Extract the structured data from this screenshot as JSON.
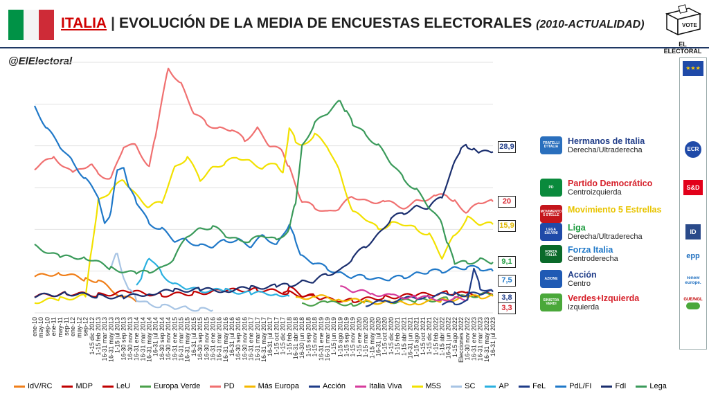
{
  "header": {
    "country": "ITALIA",
    "separator": "|",
    "title_main": "EVOLUCIÓN DE LA MEDIA DE ENCUESTAS ELECTORALES",
    "title_period": "(2010-ACTUALIDAD)",
    "handle": "@ElElectoral",
    "logo_vote": "VOTE",
    "logo_text": "EL ELECTORAL"
  },
  "colors": {
    "flag_green": "#009246",
    "flag_white": "#ffffff",
    "flag_red": "#ce2b37",
    "country_red": "#d00000",
    "title_dark": "#1f1f1f"
  },
  "sidebar": {
    "items": [
      {
        "icon": "eu-flag-icon",
        "label": ""
      },
      {
        "icon": "ecr-logo-icon",
        "label": "ECR"
      },
      {
        "icon": "sd-logo-icon",
        "label": "S&D"
      },
      {
        "icon": "id-logo-icon",
        "label": "ID"
      },
      {
        "icon": "epp-logo-icon",
        "label": "epp"
      },
      {
        "icon": "renew-logo-icon",
        "label": "renew europe."
      },
      {
        "icon": "greens-logo-icon",
        "label": "GUE/NGL"
      }
    ]
  },
  "party_labels": [
    {
      "name": "Hermanos de Italia",
      "ideology": "Derecha/Ultraderecha",
      "color": "#1f3c88",
      "logo_color": "#2a6fbd",
      "logo_text": "FRATELLI D'ITALIA"
    },
    {
      "name": "Partido Democrático",
      "ideology": "Centroizquierda",
      "color": "#d6202a",
      "logo_color": "#0a8a3c",
      "logo_text": "PD"
    },
    {
      "name": "Movimiento 5 Estrellas",
      "ideology": "",
      "color": "#e8c400",
      "logo_color": "#c4161c",
      "logo_text": "MOVIMENTO 5 STELLE"
    },
    {
      "name": "Liga",
      "ideology": "Derecha/Ultraderecha",
      "color": "#1a9a3c",
      "logo_color": "#1f4aa8",
      "logo_text": "LEGA SALVINI"
    },
    {
      "name": "Forza Italia",
      "ideology": "Centroderecha",
      "color": "#1f78c8",
      "logo_color": "#0a6a2a",
      "logo_text": "FORZA ITALIA"
    },
    {
      "name": "Acción",
      "ideology": "Centro",
      "color": "#1f3c88",
      "logo_color": "#1f5ab4",
      "logo_text": "AZIONE"
    },
    {
      "name": "Verdes+Izquierda",
      "ideology": "Izquierda",
      "color": "#d6202a",
      "logo_color": "#4aa83a",
      "logo_text": "SINISTRA VERDI"
    }
  ],
  "chart_data": {
    "type": "line",
    "title": "",
    "xlabel": "",
    "ylabel": "",
    "ylim": [
      0,
      45
    ],
    "x_tick_labels": [
      "ene-10",
      "may-10",
      "sep-10",
      "ene-11",
      "may-11",
      "sep-11",
      "ene-12",
      "may-12",
      "sep-12",
      "1-15 dic 2012",
      "1-15 feb 2013",
      "16-31 mar 2013",
      "16-31 may 2013",
      "1-15 jul 2013",
      "16-30 sep 2013",
      "16-30 nov 2013",
      "16-31 ene 2014",
      "16-31 mar 2014",
      "16-31 may 2014",
      "16-31 jul 2014",
      "16-30 sep 2014",
      "16-30 nov 2014",
      "16-31 ene 2015",
      "16-31 mar 2015",
      "16-31 may 2015",
      "16-31 jul 2015",
      "16-30 sep 2015",
      "16-30 nov 2015",
      "16-31 ene 2016",
      "16-31 mar 2016",
      "16-31 may 2016",
      "16-31 jul 2016",
      "16-30 sep 2016",
      "16-30 nov 2016",
      "16-31 ene 2017",
      "16-31 mar 2017",
      "16-31 may 2017",
      "16-31 jul 2017",
      "1-15 oct 2017",
      "1-15 dic 2017",
      "1-15 feb 2018",
      "16-31 abr 2018",
      "16-30 jun 2018",
      "1-15 sep 2018",
      "1-15 nov 2018",
      "16-31 ene 2019",
      "16-31 mar 2019",
      "1-15 jun 2019",
      "1-15 ago 2019",
      "1-15 sep 2019",
      "1-15 nov 2019",
      "1-15 ene 2020",
      "1-15 mar 2020",
      "1-15 may 2020",
      "16-31 jul 2020",
      "1-15 oct 2020",
      "1-15 dic 2020",
      "1-15 feb 2021",
      "1-15 abr 2021",
      "16-31 jun 2021",
      "1-15 ago 2021",
      "1-15 oct 2021",
      "1-15 dic 2021",
      "1-15 feb 2022",
      "1-15 abr 2022",
      "16-31 jun 2022",
      "1-15 ago 2022",
      "Elecciones 2022",
      "16-30 nov 2022",
      "16-31 ene 2023",
      "16-31 mar 2023",
      "16-31 may 2023",
      "16-31 jul 2023"
    ],
    "end_labels": [
      {
        "series": "FdI",
        "text": "28,9",
        "value": 28.9
      },
      {
        "series": "PD",
        "text": "20",
        "value": 20.0
      },
      {
        "series": "M5S",
        "text": "15,9",
        "value": 15.9
      },
      {
        "series": "Lega",
        "text": "9,1",
        "value": 9.1
      },
      {
        "series": "PdL/FI",
        "text": "7,5",
        "value": 7.5
      },
      {
        "series": "Acción",
        "text": "3,8",
        "value": 3.8
      },
      {
        "series": "Verdes+Izquierda",
        "text": "3,3",
        "value": 3.3
      }
    ],
    "series": [
      {
        "name": "IdV/RC",
        "color": "#f07f1a",
        "x": [
          0,
          4,
          8,
          10,
          13,
          16
        ],
        "y": [
          6.5,
          7.2,
          6.0,
          5.8,
          3.5,
          2.0
        ]
      },
      {
        "name": "MDP",
        "color": "#c00000",
        "x": [
          39,
          40,
          42,
          44
        ],
        "y": [
          3.5,
          4.5,
          3.2,
          3.0
        ]
      },
      {
        "name": "LeU",
        "color": "#c00000",
        "x": [
          0,
          5,
          10,
          15,
          20,
          25,
          30,
          35,
          40,
          45,
          50,
          55,
          60,
          65,
          68,
          70,
          72
        ],
        "y": [
          3.0,
          3.5,
          3.2,
          3.8,
          3.2,
          3.5,
          4.0,
          4.2,
          3.6,
          2.5,
          2.2,
          2.8,
          3.2,
          3.6,
          3.4,
          3.3,
          3.3
        ]
      },
      {
        "name": "Europa Verde",
        "color": "#4aa04a",
        "x": [
          42,
          46,
          50,
          55,
          60,
          65,
          68,
          70,
          72
        ],
        "y": [
          1.5,
          1.8,
          1.6,
          2.0,
          2.2,
          2.5,
          3.0,
          3.2,
          3.3
        ]
      },
      {
        "name": "PD",
        "color": "#f07070",
        "x": [
          0,
          3,
          6,
          9,
          10,
          12,
          14,
          16,
          18,
          19,
          21,
          23,
          25,
          27,
          29,
          31,
          33,
          35,
          37,
          39,
          40,
          42,
          44,
          46,
          48,
          50,
          52,
          55,
          58,
          60,
          63,
          65,
          66,
          68,
          70,
          72
        ],
        "y": [
          26,
          28,
          25,
          27,
          25,
          24,
          30,
          30,
          26,
          32,
          44,
          41,
          36,
          34,
          33,
          33,
          31,
          33,
          30,
          29,
          26,
          20,
          19,
          18,
          19,
          21,
          20,
          20,
          19,
          20,
          21,
          21,
          20,
          18,
          20,
          20
        ]
      },
      {
        "name": "Más Europa",
        "color": "#f5b800",
        "x": [
          41,
          44,
          48,
          52,
          56,
          60,
          64,
          68,
          70,
          72
        ],
        "y": [
          2.5,
          3.0,
          2.5,
          2.0,
          1.8,
          1.8,
          2.2,
          2.8,
          2.9,
          3.0
        ]
      },
      {
        "name": "Acción",
        "color": "#1f3c88",
        "x": [
          52,
          55,
          58,
          62,
          66,
          68,
          70,
          72
        ],
        "y": [
          1.5,
          2.0,
          2.5,
          3.0,
          3.5,
          3.2,
          3.6,
          3.8
        ]
      },
      {
        "name": "Italia Viva",
        "color": "#d63c9c",
        "x": [
          48,
          50,
          53,
          56,
          60,
          64,
          66,
          68
        ],
        "y": [
          4.5,
          4.0,
          3.5,
          3.0,
          2.8,
          2.5,
          2.5,
          2.5
        ]
      },
      {
        "name": "M5S",
        "color": "#f2e100",
        "x": [
          0,
          4,
          8,
          9,
          10,
          12,
          14,
          16,
          18,
          20,
          22,
          24,
          26,
          28,
          30,
          32,
          34,
          36,
          38,
          39,
          40,
          41,
          42,
          44,
          46,
          48,
          50,
          52,
          54,
          56,
          58,
          60,
          62,
          64,
          66,
          68,
          70,
          72
        ],
        "y": [
          2.0,
          2.5,
          3.0,
          12,
          20,
          22,
          24,
          21,
          19,
          20,
          26,
          28,
          24,
          26,
          27,
          28,
          27,
          26,
          27,
          25,
          33,
          31,
          30,
          32,
          30,
          25,
          18,
          17,
          15,
          16,
          16,
          15,
          14,
          10,
          14,
          17,
          16,
          15.9
        ]
      },
      {
        "name": "SC",
        "color": "#a7c4e4",
        "x": [
          12,
          13,
          14,
          15,
          16,
          18,
          20,
          22,
          24,
          26,
          28
        ],
        "y": [
          8,
          11,
          6,
          4,
          2.5,
          1.5,
          1.2,
          1.0,
          0.8,
          0.6,
          0.5
        ]
      },
      {
        "name": "AP",
        "color": "#2ab0e0",
        "x": [
          16,
          17,
          18,
          20,
          22,
          24,
          26,
          30,
          34,
          38,
          40
        ],
        "y": [
          5,
          7,
          10,
          7,
          5,
          4.5,
          4,
          4,
          3.5,
          3.5,
          3.0
        ]
      },
      {
        "name": "FeL",
        "color": "#1f3c88",
        "x": [
          64,
          66,
          68,
          69,
          70,
          72
        ],
        "y": [
          1.5,
          1.8,
          2.0,
          8,
          4.5,
          3.8
        ]
      },
      {
        "name": "PdL/FI",
        "color": "#1f78c8",
        "x": [
          0,
          2,
          4,
          6,
          8,
          10,
          11,
          12,
          13,
          14,
          15,
          16,
          18,
          20,
          22,
          24,
          26,
          28,
          30,
          32,
          34,
          36,
          38,
          40,
          41,
          42,
          44,
          46,
          48,
          50,
          52,
          54,
          56,
          58,
          60,
          62,
          64,
          66,
          68,
          70,
          72
        ],
        "y": [
          37,
          33,
          30,
          27,
          24,
          21,
          16,
          18,
          26,
          26,
          22,
          20,
          16,
          15,
          13,
          13,
          12,
          12,
          13,
          13,
          12,
          14,
          12,
          16,
          13,
          10,
          9,
          8,
          7,
          6.5,
          6.5,
          6,
          6.2,
          6.5,
          7,
          7.5,
          7.5,
          8,
          8.2,
          8,
          7.5
        ]
      },
      {
        "name": "FdI",
        "color": "#1a2e6e",
        "x": [
          0,
          5,
          10,
          14,
          18,
          22,
          26,
          30,
          34,
          38,
          40,
          42,
          44,
          46,
          48,
          50,
          52,
          54,
          56,
          58,
          60,
          62,
          64,
          66,
          67,
          68,
          69,
          70,
          72
        ],
        "y": [
          3.0,
          3.5,
          3.0,
          2.8,
          3.5,
          4.0,
          4.2,
          4.0,
          4.5,
          4.8,
          5.0,
          5.5,
          5.8,
          7,
          7.5,
          10,
          12,
          14,
          17,
          18,
          19,
          19,
          21,
          27,
          29.5,
          30,
          29.3,
          28.8,
          28.9
        ]
      },
      {
        "name": "Lega",
        "color": "#3a9a5a",
        "x": [
          0,
          4,
          8,
          12,
          16,
          18,
          20,
          22,
          24,
          26,
          28,
          30,
          32,
          34,
          36,
          38,
          40,
          41,
          42,
          44,
          46,
          48,
          49,
          50,
          52,
          54,
          56,
          58,
          60,
          62,
          64,
          65,
          66,
          68,
          70,
          72
        ],
        "y": [
          12,
          10,
          10,
          8,
          7,
          7.5,
          8,
          10,
          14,
          15,
          15.5,
          14,
          13,
          13,
          14,
          13,
          15,
          20,
          30,
          34,
          36,
          38,
          36,
          34,
          32,
          30,
          27,
          24,
          22,
          19,
          16,
          12,
          9,
          9,
          9.5,
          9.1
        ]
      }
    ]
  },
  "legend": {
    "items": [
      {
        "label": "IdV/RC",
        "color": "#f07f1a"
      },
      {
        "label": "MDP",
        "color": "#c00000"
      },
      {
        "label": "LeU",
        "color": "#c00000"
      },
      {
        "label": "Europa Verde",
        "color": "#4aa04a"
      },
      {
        "label": "PD",
        "color": "#f07070"
      },
      {
        "label": "Más Europa",
        "color": "#f5b800"
      },
      {
        "label": "Acción",
        "color": "#1f3c88"
      },
      {
        "label": "Italia Viva",
        "color": "#d63c9c"
      },
      {
        "label": "M5S",
        "color": "#f2e100"
      },
      {
        "label": "SC",
        "color": "#a7c4e4"
      },
      {
        "label": "AP",
        "color": "#2ab0e0"
      },
      {
        "label": "FeL",
        "color": "#1f3c88"
      },
      {
        "label": "PdL/FI",
        "color": "#1f78c8"
      },
      {
        "label": "FdI",
        "color": "#1a2e6e"
      },
      {
        "label": "Lega",
        "color": "#3a9a5a"
      }
    ]
  }
}
